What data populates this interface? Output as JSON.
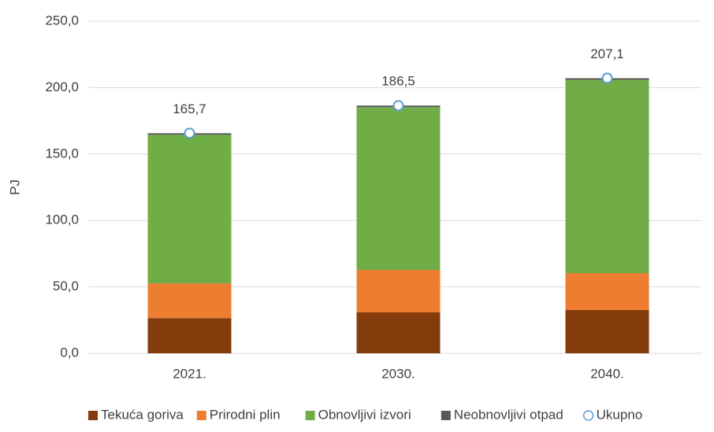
{
  "chart_data": {
    "type": "bar",
    "stacked": true,
    "y_label": "PJ",
    "categories": [
      "2021.",
      "2030.",
      "2040."
    ],
    "series": [
      {
        "name": "Tekuća goriva",
        "color": "#843c0c",
        "values": [
          26.5,
          30.8,
          32.6
        ]
      },
      {
        "name": "Prirodni plin",
        "color": "#ed7d31",
        "values": [
          26.2,
          32.0,
          27.8
        ]
      },
      {
        "name": "Obnovljivi izvori",
        "color": "#70ad47",
        "values": [
          111.8,
          122.5,
          145.5
        ]
      },
      {
        "name": "Neobnovljivi otpad",
        "color": "#595959",
        "values": [
          1.2,
          1.2,
          1.2
        ]
      },
      {
        "name": "Ukupno",
        "type": "marker",
        "color": "#5b9bd5",
        "values": [
          165.7,
          186.5,
          207.1
        ],
        "value_labels": [
          "165,7",
          "186,5",
          "207,1"
        ]
      }
    ],
    "ylim": [
      0,
      250
    ],
    "yticks": [
      {
        "value": 0,
        "label": "0,0"
      },
      {
        "value": 50,
        "label": "50,0"
      },
      {
        "value": 100,
        "label": "100,0"
      },
      {
        "value": 150,
        "label": "150,0"
      },
      {
        "value": 200,
        "label": "200,0"
      },
      {
        "value": 250,
        "label": "250,0"
      }
    ],
    "grid": true,
    "legend": "bottom"
  }
}
